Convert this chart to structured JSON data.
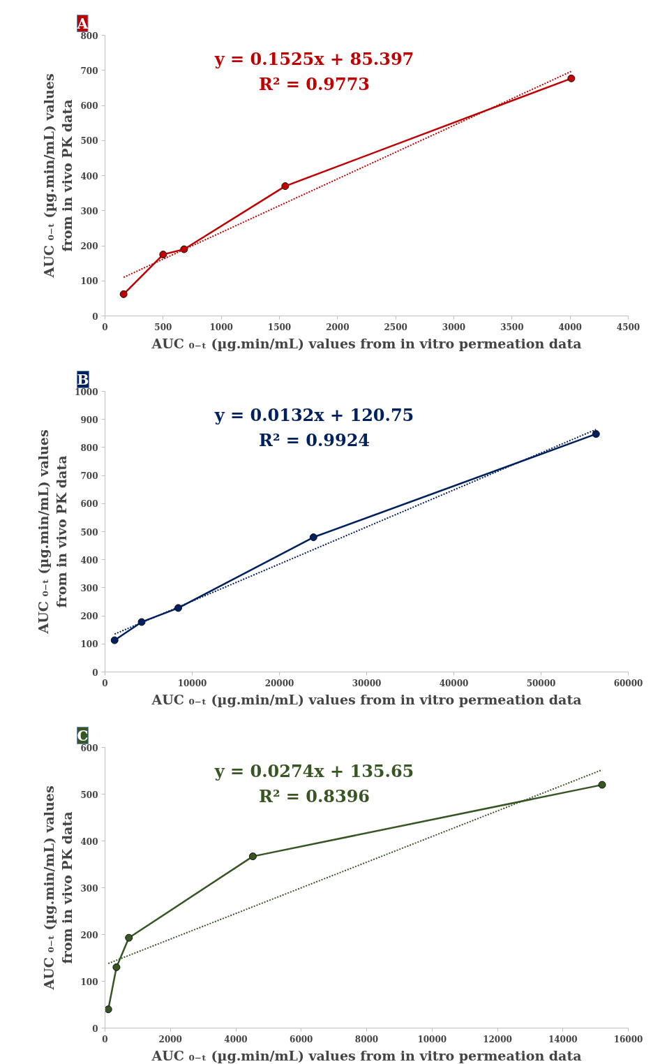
{
  "chart_data": [
    {
      "type": "line",
      "title": "A",
      "xlabel": "AUC ₀₋ₜ (µg.min/mL) values from in vitro permeation data",
      "ylabel": "AUC ₀₋ₜ (µg.min/mL) values\nfrom in vivo PK data",
      "annotations": [
        "y = 0.1525x + 85.397",
        "R² = 0.9773"
      ],
      "x": [
        160,
        500,
        680,
        1550,
        4010
      ],
      "xlim": [
        0,
        4500
      ],
      "xticks": [
        0,
        500,
        1000,
        1500,
        2000,
        2500,
        3000,
        3500,
        4000,
        4500
      ],
      "ylim": [
        0,
        800
      ],
      "yticks": [
        0,
        100,
        200,
        300,
        400,
        500,
        600,
        700,
        800
      ],
      "grid": false,
      "marker": "circle",
      "line_style": "solid",
      "series": [
        {
          "color": "#c00000",
          "values": [
            62,
            175,
            190,
            370,
            677
          ]
        },
        {
          "type": "line",
          "color": "#c00000",
          "x": [
            160,
            4010
          ],
          "values": [
            110,
            697
          ],
          "marker": "none",
          "line_style": "dotted"
        }
      ]
    },
    {
      "type": "line",
      "title": "B",
      "xlabel": "AUC ₀₋ₜ (µg.min/mL) values from in vitro permeation data",
      "ylabel": "AUC ₀₋ₜ (µg.min/mL) values\nfrom in vivo PK data",
      "annotations": [
        "y = 0.0132x + 120.75",
        "R² = 0.9924"
      ],
      "x": [
        1100,
        4200,
        8400,
        23900,
        56300
      ],
      "xlim": [
        0,
        60000
      ],
      "xticks": [
        0,
        10000,
        20000,
        30000,
        40000,
        50000,
        60000
      ],
      "ylim": [
        0,
        1000
      ],
      "yticks": [
        0,
        100,
        200,
        300,
        400,
        500,
        600,
        700,
        800,
        900,
        1000
      ],
      "grid": false,
      "marker": "circle",
      "line_style": "solid",
      "series": [
        {
          "color": "#002060",
          "values": [
            113,
            178,
            228,
            480,
            848
          ]
        },
        {
          "type": "line",
          "color": "#002060",
          "x": [
            1100,
            56300
          ],
          "values": [
            135,
            864
          ],
          "marker": "none",
          "line_style": "dotted"
        }
      ]
    },
    {
      "type": "line",
      "title": "C",
      "xlabel": "AUC ₀₋ₜ (µg.min/mL) values from in vitro permeation data",
      "ylabel": "AUC ₀₋ₜ (µg.min/mL) values\nfrom in vivo PK data",
      "annotations": [
        "y = 0.0274x + 135.65",
        "R² = 0.8396"
      ],
      "x": [
        100,
        350,
        730,
        4520,
        15200
      ],
      "xlim": [
        0,
        16000
      ],
      "xticks": [
        0,
        2000,
        4000,
        6000,
        8000,
        10000,
        12000,
        14000,
        16000
      ],
      "ylim": [
        0,
        600
      ],
      "yticks": [
        0,
        100,
        200,
        300,
        400,
        500,
        600
      ],
      "grid": false,
      "marker": "circle",
      "line_style": "solid",
      "series": [
        {
          "color": "#375623",
          "values": [
            40,
            130,
            193,
            367,
            520
          ]
        },
        {
          "type": "line",
          "color": "#375623",
          "x": [
            100,
            15200
          ],
          "values": [
            138,
            552
          ],
          "marker": "none",
          "line_style": "dotted"
        }
      ]
    }
  ]
}
